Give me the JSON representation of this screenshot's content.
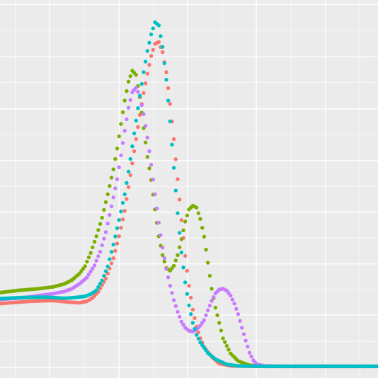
{
  "chart_data": {
    "type": "scatter",
    "title": "",
    "xlabel": "",
    "ylabel": "",
    "grid": true,
    "legend": "none",
    "xlim": [
      0,
      100
    ],
    "ylim": [
      0,
      100
    ],
    "background": "#ebebeb",
    "grid_color": "#ffffff",
    "x_major_ticks": [
      13.1,
      31.5,
      49.6,
      67.8,
      86.1
    ],
    "x_minor_ticks": [
      4.0,
      22.3,
      40.6,
      58.8,
      77.0,
      95.2
    ],
    "y_major_ticks": [
      2.8,
      16.7,
      30.2,
      43.9,
      57.5,
      71.2,
      85.0,
      98.8
    ],
    "y_minor_ticks": [
      9.7,
      23.4,
      37.1,
      50.7,
      64.4,
      78.2,
      91.9
    ],
    "series": [
      {
        "color": "#f8766d",
        "points": [
          [
            0,
            19.7
          ],
          [
            8,
            20.3
          ],
          [
            14,
            20.5
          ],
          [
            18,
            20.1
          ],
          [
            21,
            19.9
          ],
          [
            23,
            20.3
          ],
          [
            24.5,
            21.2
          ],
          [
            26,
            22.8
          ],
          [
            28,
            26.3
          ],
          [
            30,
            31.7
          ],
          [
            31.5,
            37.5
          ],
          [
            33,
            44.2
          ],
          [
            34,
            50.5
          ],
          [
            35,
            56.8
          ],
          [
            36,
            63.2
          ],
          [
            37,
            69.6
          ],
          [
            38,
            75.4
          ],
          [
            39,
            80.5
          ],
          [
            40,
            85.2
          ],
          [
            41,
            88.4
          ],
          [
            42,
            88.9
          ],
          [
            43,
            86.2
          ],
          [
            44,
            80.9
          ],
          [
            45,
            72.5
          ],
          [
            46,
            63.2
          ],
          [
            47,
            52.6
          ],
          [
            48,
            41.8
          ],
          [
            49,
            32.3
          ],
          [
            50,
            24.4
          ],
          [
            51,
            18.1
          ],
          [
            52,
            13.6
          ],
          [
            53,
            10.5
          ],
          [
            54,
            8.2
          ],
          [
            56,
            5.6
          ],
          [
            58,
            3.8
          ],
          [
            61,
            3.2
          ],
          [
            70,
            3.1
          ],
          [
            100,
            3.1
          ]
        ]
      },
      {
        "color": "#7cae00",
        "points": [
          [
            0,
            22.6
          ],
          [
            5,
            23.2
          ],
          [
            10,
            23.6
          ],
          [
            14,
            24.1
          ],
          [
            17,
            24.9
          ],
          [
            19,
            25.9
          ],
          [
            21,
            27.6
          ],
          [
            22.5,
            29.6
          ],
          [
            24,
            33.1
          ],
          [
            25.5,
            37.5
          ],
          [
            27,
            42.4
          ],
          [
            28.5,
            48.6
          ],
          [
            30,
            55.2
          ],
          [
            31,
            60.7
          ],
          [
            32,
            67.2
          ],
          [
            33,
            73.4
          ],
          [
            34,
            78.4
          ],
          [
            35,
            81.3
          ],
          [
            36,
            80.2
          ],
          [
            37,
            74.3
          ],
          [
            38,
            66.1
          ],
          [
            39,
            58.5
          ],
          [
            40,
            52.4
          ],
          [
            41,
            44.6
          ],
          [
            42,
            37.5
          ],
          [
            43,
            32.5
          ],
          [
            44,
            29.1
          ],
          [
            45,
            28.4
          ],
          [
            46,
            29.7
          ],
          [
            47,
            32.5
          ],
          [
            48,
            36.7
          ],
          [
            49,
            41.4
          ],
          [
            50,
            44.6
          ],
          [
            51,
            45.6
          ],
          [
            52,
            45.1
          ],
          [
            53,
            42.1
          ],
          [
            54,
            37.4
          ],
          [
            55,
            30.5
          ],
          [
            56,
            23.6
          ],
          [
            57,
            18.6
          ],
          [
            58,
            14.6
          ],
          [
            59,
            10.5
          ],
          [
            61,
            6.5
          ],
          [
            63,
            4.5
          ],
          [
            66,
            3.4
          ],
          [
            70,
            3.1
          ],
          [
            100,
            3.1
          ]
        ]
      },
      {
        "color": "#c77cff",
        "points": [
          [
            0,
            20.8
          ],
          [
            6,
            21.2
          ],
          [
            11,
            21.9
          ],
          [
            14,
            22.3
          ],
          [
            17,
            22.9
          ],
          [
            19,
            23.6
          ],
          [
            21,
            24.9
          ],
          [
            23,
            26.6
          ],
          [
            25,
            29.8
          ],
          [
            26.5,
            33.4
          ],
          [
            28,
            38.6
          ],
          [
            29.5,
            45.4
          ],
          [
            31,
            52.6
          ],
          [
            32,
            58.9
          ],
          [
            33,
            65.4
          ],
          [
            34,
            71.5
          ],
          [
            35,
            75.6
          ],
          [
            36,
            76.8
          ],
          [
            37,
            74.6
          ],
          [
            38,
            69.8
          ],
          [
            39,
            63.6
          ],
          [
            40,
            56.4
          ],
          [
            41,
            48.6
          ],
          [
            42,
            41.1
          ],
          [
            43,
            34.5
          ],
          [
            44,
            28.9
          ],
          [
            45,
            24.4
          ],
          [
            46,
            20.6
          ],
          [
            47,
            17.5
          ],
          [
            48,
            14.9
          ],
          [
            49,
            13.3
          ],
          [
            50,
            12.5
          ],
          [
            51,
            12.3
          ],
          [
            52,
            12.8
          ],
          [
            53,
            13.9
          ],
          [
            54,
            15.3
          ],
          [
            55,
            17.9
          ],
          [
            56,
            20.4
          ],
          [
            57,
            22.4
          ],
          [
            58,
            23.4
          ],
          [
            59,
            23.6
          ],
          [
            60,
            23.1
          ],
          [
            61,
            21.8
          ],
          [
            62,
            19.7
          ],
          [
            63,
            16.9
          ],
          [
            64,
            13.3
          ],
          [
            65,
            9.9
          ],
          [
            66,
            6.7
          ],
          [
            67,
            4.7
          ],
          [
            68,
            3.6
          ],
          [
            70,
            3.2
          ],
          [
            75,
            3.1
          ],
          [
            100,
            3.1
          ]
        ]
      },
      {
        "color": "#00bfc4",
        "points": [
          [
            0,
            21.0
          ],
          [
            6,
            21.3
          ],
          [
            12,
            21.4
          ],
          [
            17,
            21.1
          ],
          [
            20,
            21.3
          ],
          [
            22.5,
            21.6
          ],
          [
            24,
            22.2
          ],
          [
            25.5,
            23.2
          ],
          [
            27,
            25.8
          ],
          [
            28.5,
            29.5
          ],
          [
            30,
            35.3
          ],
          [
            31.5,
            41.8
          ],
          [
            33,
            48.6
          ],
          [
            34,
            54.6
          ],
          [
            35,
            61.3
          ],
          [
            36,
            68.1
          ],
          [
            37,
            74.7
          ],
          [
            38,
            80.9
          ],
          [
            39,
            86.5
          ],
          [
            40,
            90.9
          ],
          [
            41,
            94.1
          ],
          [
            42,
            93.3
          ],
          [
            43,
            87.6
          ],
          [
            44,
            78.9
          ],
          [
            45,
            67.9
          ],
          [
            46,
            55.6
          ],
          [
            47,
            43.6
          ],
          [
            48,
            33.2
          ],
          [
            49,
            25.3
          ],
          [
            50,
            19.2
          ],
          [
            51,
            14.6
          ],
          [
            52,
            11.4
          ],
          [
            53,
            9.4
          ],
          [
            55,
            6.6
          ],
          [
            57,
            5.0
          ],
          [
            60,
            3.6
          ],
          [
            63,
            3.2
          ],
          [
            70,
            3.1
          ],
          [
            100,
            3.1
          ]
        ]
      }
    ]
  }
}
